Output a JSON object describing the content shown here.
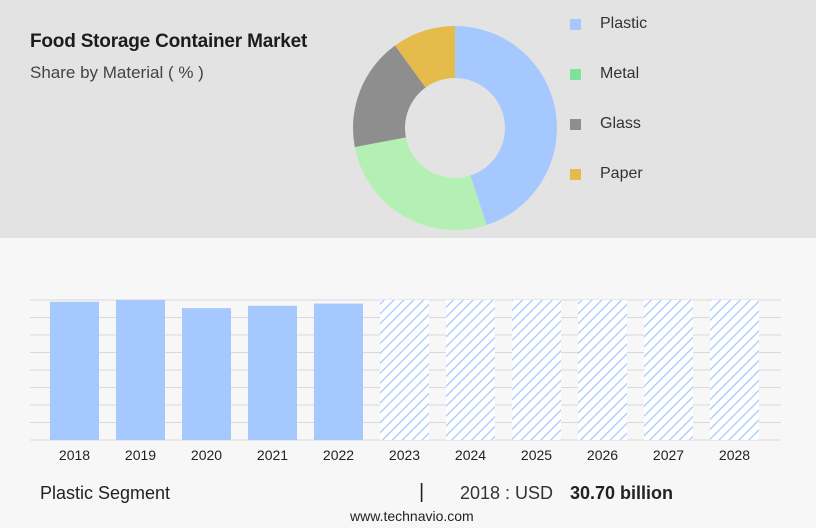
{
  "title": "Food Storage Container Market",
  "subtitle": "Share by Material ( % )",
  "chart_data": [
    {
      "type": "donut",
      "title": "Food Storage Container Market",
      "subtitle": "Share by Material ( % )",
      "categories": [
        "Plastic",
        "Metal",
        "Glass",
        "Paper"
      ],
      "values": [
        45,
        27,
        18,
        10
      ],
      "colors": [
        "#a5c8ff",
        "#b4f0b4",
        "#8e8e8e",
        "#e5bb4c"
      ],
      "legend_colors": [
        "#a5c8ff",
        "#7ee29b",
        "#8e8e8e",
        "#e5bb4c"
      ],
      "legend_position": "right"
    },
    {
      "type": "bar",
      "categories": [
        "2018",
        "2019",
        "2020",
        "2021",
        "2022",
        "2023",
        "2024",
        "2025",
        "2026",
        "2027",
        "2028"
      ],
      "values": [
        30.7,
        31.1,
        29.3,
        29.8,
        30.3,
        31.1,
        31.1,
        31.1,
        31.1,
        31.1,
        31.1
      ],
      "forecast_from": "2023",
      "bar_color": "#a5c8ff",
      "forecast_pattern": "hatched",
      "ylim": [
        0,
        31.1
      ],
      "grid": true,
      "xlabel": "",
      "ylabel": ""
    }
  ],
  "footer": {
    "segment": "Plastic Segment",
    "divider": "|",
    "year_prefix": "2018 : USD",
    "value": "30.70 billion",
    "source": "www.technavio.com"
  }
}
